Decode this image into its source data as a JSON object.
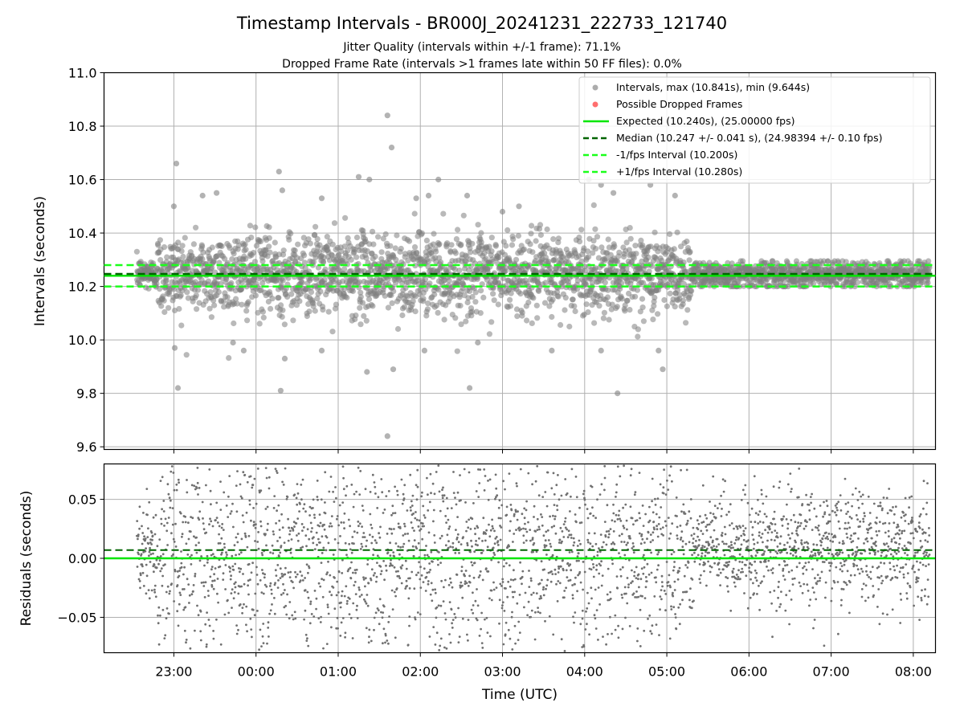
{
  "chart_data": [
    {
      "type": "scatter",
      "panel": "intervals",
      "title": "Timestamp Intervals - BR000J_20241231_222733_121740",
      "subtitle_lines": [
        "Jitter Quality (intervals within +/-1 frame): 71.1%",
        "Dropped Frame Rate (intervals >1 frames late within 50 FF files): 0.0%"
      ],
      "xlabel": "",
      "ylabel": "Intervals (seconds)",
      "ylim": [
        9.59,
        11.0
      ],
      "yticks": [
        9.6,
        9.8,
        10.0,
        10.2,
        10.4,
        10.6,
        10.8,
        11.0
      ],
      "ytick_labels": [
        "9.6",
        "9.8",
        "10.0",
        "10.2",
        "10.4",
        "10.6",
        "10.8",
        "11.0"
      ],
      "x_range_hours": [
        22.15,
        32.27
      ],
      "xticks_hours": [
        23,
        24,
        25,
        26,
        27,
        28,
        29,
        30,
        31,
        32
      ],
      "grid": true,
      "legend_position": "top-right",
      "legend": [
        {
          "label": "Intervals, max (10.841s), min (9.644s)",
          "marker": "circle",
          "color": "#808080"
        },
        {
          "label": "Possible Dropped Frames",
          "marker": "circle",
          "color": "#ff5555"
        },
        {
          "label": "Expected (10.240s), (25.00000 fps)",
          "line": "solid",
          "color": "#00e600"
        },
        {
          "label": "Median (10.247 +/- 0.041 s), (24.98394 +/- 0.10 fps)",
          "line": "dashed",
          "color": "#006400"
        },
        {
          "label": "-1/fps Interval (10.200s)",
          "line": "dashed",
          "color": "#1aff1a"
        },
        {
          "label": "+1/fps Interval (10.280s)",
          "line": "dashed",
          "color": "#1aff1a"
        }
      ],
      "reference_lines": {
        "expected": 10.24,
        "median": 10.247,
        "minus_one_fps": 10.2,
        "plus_one_fps": 10.28
      },
      "series": [
        {
          "name": "Intervals, max (10.841s), min (9.644s)",
          "points_note": "dense cloud of ~3100 points from 22:33 to 08:12 UTC",
          "time_start_hours": 22.55,
          "time_end_hours": 32.2,
          "center": 10.247,
          "outliers": [
            [
              22.03,
              10.66
            ],
            [
              22.05,
              9.82
            ],
            [
              22.01,
              9.97
            ],
            [
              22.0,
              10.5
            ],
            [
              22.35,
              10.54
            ],
            [
              22.52,
              10.55
            ],
            [
              22.72,
              9.99
            ],
            [
              22.85,
              9.96
            ],
            [
              23.28,
              10.63
            ],
            [
              23.32,
              10.56
            ],
            [
              23.3,
              9.81
            ],
            [
              23.35,
              9.93
            ],
            [
              23.8,
              10.53
            ],
            [
              23.8,
              9.96
            ],
            [
              24.25,
              10.61
            ],
            [
              24.38,
              10.6
            ],
            [
              24.35,
              9.88
            ],
            [
              24.6,
              10.84
            ],
            [
              24.65,
              10.72
            ],
            [
              24.67,
              9.89
            ],
            [
              24.6,
              9.64
            ],
            [
              24.95,
              10.53
            ],
            [
              25.1,
              10.54
            ],
            [
              25.05,
              9.96
            ],
            [
              25.22,
              10.6
            ],
            [
              25.57,
              10.54
            ],
            [
              25.6,
              9.82
            ],
            [
              25.7,
              9.99
            ],
            [
              26.0,
              10.48
            ],
            [
              26.2,
              10.5
            ],
            [
              26.6,
              9.96
            ],
            [
              27.05,
              10.6
            ],
            [
              27.2,
              10.58
            ],
            [
              27.2,
              9.96
            ],
            [
              27.35,
              10.55
            ],
            [
              27.4,
              9.8
            ],
            [
              27.8,
              10.58
            ],
            [
              27.9,
              9.96
            ],
            [
              27.95,
              9.89
            ],
            [
              28.1,
              10.54
            ]
          ]
        },
        {
          "name": "Possible Dropped Frames",
          "values": []
        }
      ]
    },
    {
      "type": "scatter",
      "panel": "residuals",
      "xlabel": "Time (UTC)",
      "ylabel": "Residuals (seconds)",
      "ylim": [
        -0.08,
        0.08
      ],
      "yticks": [
        -0.05,
        0.0,
        0.05
      ],
      "ytick_labels": [
        "−0.05",
        "0.00",
        "0.05"
      ],
      "x_range_hours": [
        22.15,
        32.27
      ],
      "xticks_hours": [
        23,
        24,
        25,
        26,
        27,
        28,
        29,
        30,
        31,
        32
      ],
      "xtick_labels": [
        "23:00",
        "00:00",
        "01:00",
        "02:00",
        "03:00",
        "04:00",
        "05:00",
        "06:00",
        "07:00",
        "08:00"
      ],
      "grid": true,
      "reference_lines": {
        "zero": 0.0,
        "median_offset": 0.007
      },
      "series": [
        {
          "name": "residuals",
          "points_note": "~3100 points from 22:33 to 08:12 UTC, spread narrowing after 05:30",
          "time_start_hours": 22.55,
          "time_end_hours": 32.2
        }
      ]
    }
  ],
  "colors": {
    "points": "#808080",
    "expected": "#00e600",
    "median": "#006400",
    "fps_bounds": "#1aff1a",
    "grid": "#b0b0b0",
    "dropped": "#ff5555"
  }
}
